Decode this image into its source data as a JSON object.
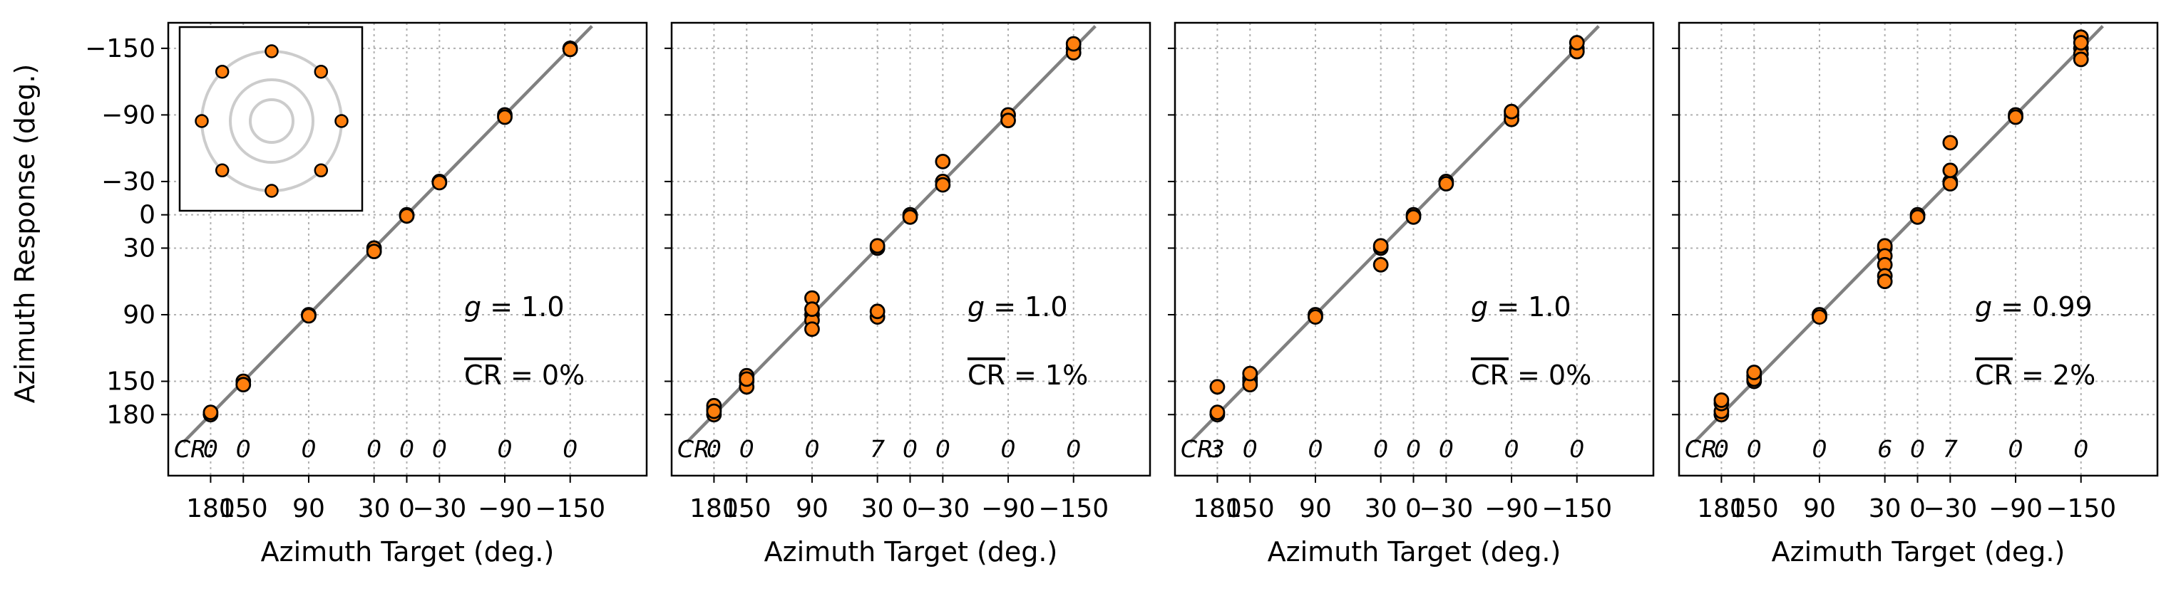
{
  "figure": {
    "ylabel": "Azimuth Response (deg.)",
    "xlabel": "Azimuth Target (deg.)",
    "cr_prefix": "CR:",
    "tick_labels": [
      "180",
      "150",
      "90",
      "30",
      "0",
      "−30",
      "−90",
      "−150"
    ],
    "y_tick_labels": [
      "−150",
      "−90",
      "−30",
      "0",
      "30",
      "90",
      "150",
      "180"
    ],
    "inset": {
      "speaker_angles": [
        0,
        45,
        90,
        135,
        180,
        225,
        270,
        315
      ],
      "ring_color": "#cccccc"
    },
    "colors": {
      "marker_fill": "#ff7f0e",
      "marker_edge": "#000000",
      "diagonal": "#808080",
      "grid": "#b0b0b0"
    }
  },
  "chart_data": [
    {
      "type": "scatter",
      "panel": 1,
      "x_targets": [
        180,
        150,
        90,
        30,
        0,
        -30,
        -90,
        -150
      ],
      "x_order": "descending-left-to-right",
      "y_order": "descending-top-to-bottom",
      "g_text": "g = 1.0",
      "cr_text": "CR = 0%",
      "cr_counts": [
        "0",
        "0",
        "0",
        "0",
        "0",
        "0",
        "0",
        "0"
      ],
      "points": [
        [
          180,
          180
        ],
        [
          180,
          178
        ],
        [
          150,
          150
        ],
        [
          150,
          153
        ],
        [
          90,
          90
        ],
        [
          90,
          91
        ],
        [
          30,
          30
        ],
        [
          30,
          33
        ],
        [
          0,
          0
        ],
        [
          0,
          1
        ],
        [
          -30,
          -30
        ],
        [
          -30,
          -29
        ],
        [
          -90,
          -90
        ],
        [
          -90,
          -88
        ],
        [
          -150,
          -150
        ],
        [
          -150,
          -149
        ]
      ]
    },
    {
      "type": "scatter",
      "panel": 2,
      "x_targets": [
        180,
        150,
        90,
        30,
        0,
        -30,
        -90,
        -150
      ],
      "g_text": "g = 1.0",
      "cr_text": "CR = 1%",
      "cr_counts": [
        "0",
        "0",
        "0",
        "7",
        "0",
        "0",
        "0",
        "0"
      ],
      "points": [
        [
          180,
          180
        ],
        [
          180,
          175
        ],
        [
          180,
          172
        ],
        [
          180,
          177
        ],
        [
          150,
          150
        ],
        [
          150,
          145
        ],
        [
          150,
          155
        ],
        [
          150,
          148
        ],
        [
          90,
          90
        ],
        [
          90,
          75
        ],
        [
          90,
          95
        ],
        [
          90,
          103
        ],
        [
          90,
          85
        ],
        [
          30,
          30
        ],
        [
          30,
          28
        ],
        [
          30,
          92
        ],
        [
          30,
          87
        ],
        [
          0,
          0
        ],
        [
          0,
          2
        ],
        [
          -30,
          -30
        ],
        [
          -30,
          -48
        ],
        [
          -30,
          -27
        ],
        [
          -90,
          -90
        ],
        [
          -90,
          -85
        ],
        [
          -150,
          -150
        ],
        [
          -150,
          -146
        ],
        [
          -150,
          -154
        ]
      ]
    },
    {
      "type": "scatter",
      "panel": 3,
      "x_targets": [
        180,
        150,
        90,
        30,
        0,
        -30,
        -90,
        -150
      ],
      "g_text": "g = 1.0",
      "cr_text": "CR = 0%",
      "cr_counts": [
        "3",
        "0",
        "0",
        "0",
        "0",
        "0",
        "0",
        "0"
      ],
      "points": [
        [
          180,
          180
        ],
        [
          180,
          178
        ],
        [
          180,
          155
        ],
        [
          150,
          150
        ],
        [
          150,
          147
        ],
        [
          150,
          153
        ],
        [
          150,
          143
        ],
        [
          90,
          90
        ],
        [
          90,
          92
        ],
        [
          30,
          30
        ],
        [
          30,
          28
        ],
        [
          30,
          45
        ],
        [
          0,
          0
        ],
        [
          0,
          2
        ],
        [
          -30,
          -30
        ],
        [
          -30,
          -28
        ],
        [
          -90,
          -90
        ],
        [
          -90,
          -86
        ],
        [
          -90,
          -93
        ],
        [
          -150,
          -150
        ],
        [
          -150,
          -147
        ],
        [
          -150,
          -155
        ]
      ]
    },
    {
      "type": "scatter",
      "panel": 4,
      "x_targets": [
        180,
        150,
        90,
        30,
        0,
        -30,
        -90,
        -150
      ],
      "g_text": "g = 0.99",
      "cr_text": "CR = 2%",
      "cr_counts": [
        "0",
        "0",
        "0",
        "6",
        "0",
        "7",
        "0",
        "0"
      ],
      "points": [
        [
          180,
          180
        ],
        [
          180,
          177
        ],
        [
          180,
          170
        ],
        [
          180,
          167
        ],
        [
          150,
          150
        ],
        [
          150,
          145
        ],
        [
          150,
          148
        ],
        [
          150,
          142
        ],
        [
          90,
          90
        ],
        [
          90,
          92
        ],
        [
          30,
          30
        ],
        [
          30,
          28
        ],
        [
          30,
          37
        ],
        [
          30,
          45
        ],
        [
          30,
          55
        ],
        [
          30,
          60
        ],
        [
          0,
          0
        ],
        [
          0,
          2
        ],
        [
          -30,
          -30
        ],
        [
          -30,
          -28
        ],
        [
          -30,
          -40
        ],
        [
          -30,
          -65
        ],
        [
          -90,
          -90
        ],
        [
          -90,
          -88
        ],
        [
          -150,
          -150
        ],
        [
          -150,
          -160
        ],
        [
          -150,
          -145
        ],
        [
          -150,
          -140
        ],
        [
          -150,
          -155
        ]
      ]
    }
  ]
}
